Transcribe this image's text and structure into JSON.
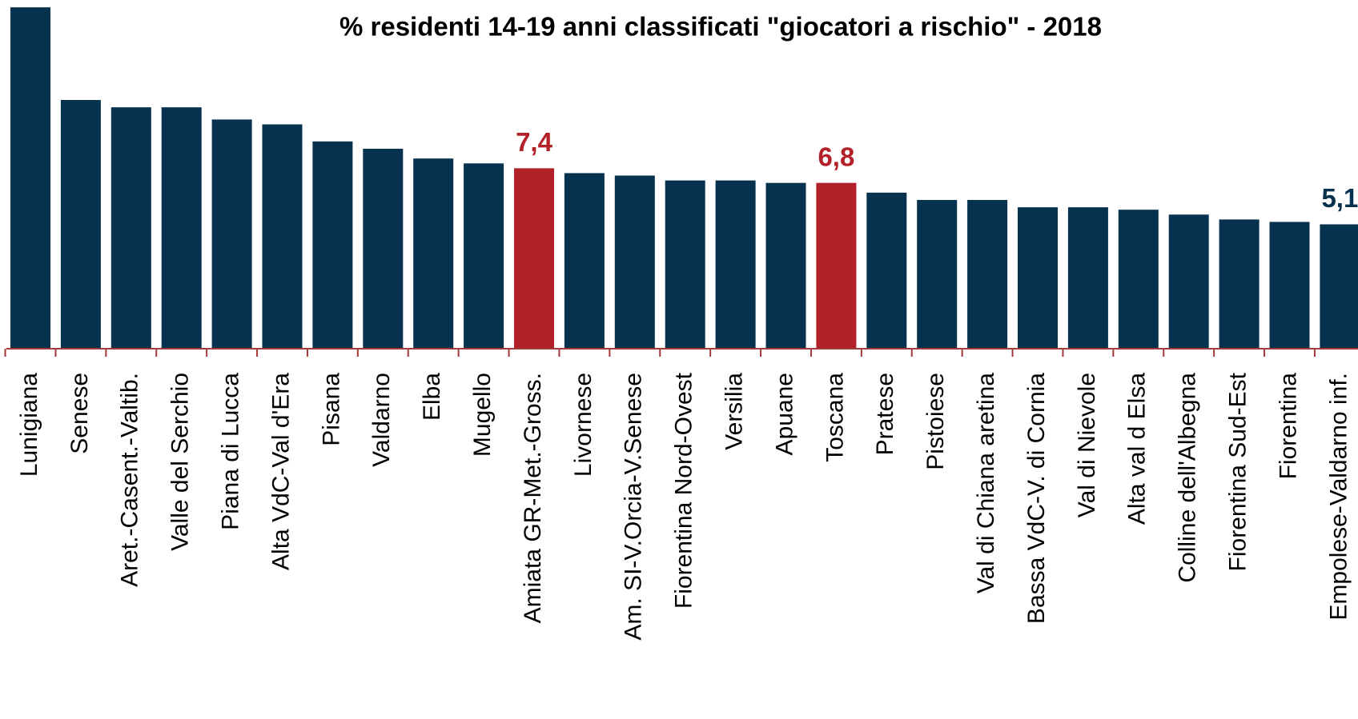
{
  "chart_data": {
    "type": "bar",
    "title": "% residenti 14-19 anni classificati \"giocatori a rischio\" - 2018",
    "categories": [
      "Lunigiana",
      "Senese",
      "Aret.-Casent.-Valtib.",
      "Valle del Serchio",
      "Piana di Lucca",
      "Alta VdC-Val d'Era",
      "Pisana",
      "Valdarno",
      "Elba",
      "Mugello",
      "Amiata GR-Met.-Gross.",
      "Livornese",
      "Am. SI-V.Orcia-V.Senese",
      "Fiorentina Nord-Ovest",
      "Versilia",
      "Apuane",
      "Toscana",
      "Pratese",
      "Pistoiese",
      "Val di Chiana aretina",
      "Bassa VdC-V. di Cornia",
      "Val di Nievole",
      "Alta val d Elsa",
      "Colline dell'Albegna",
      "Fiorentina Sud-Est",
      "Fiorentina",
      "Empolese-Valdarno inf."
    ],
    "values": [
      14.0,
      10.2,
      9.9,
      9.9,
      9.4,
      9.2,
      8.5,
      8.2,
      7.8,
      7.6,
      7.4,
      7.2,
      7.1,
      6.9,
      6.9,
      6.8,
      6.8,
      6.4,
      6.1,
      6.1,
      5.8,
      5.8,
      5.7,
      5.5,
      5.3,
      5.2,
      5.1
    ],
    "value_labels": [
      null,
      null,
      null,
      null,
      null,
      null,
      null,
      null,
      null,
      null,
      "7,4",
      null,
      null,
      null,
      null,
      null,
      "6,8",
      null,
      null,
      null,
      null,
      null,
      null,
      null,
      null,
      null,
      "5,1"
    ],
    "colors": [
      "#06324f",
      "#06324f",
      "#06324f",
      "#06324f",
      "#06324f",
      "#06324f",
      "#06324f",
      "#06324f",
      "#06324f",
      "#06324f",
      "#b22028",
      "#06324f",
      "#06324f",
      "#06324f",
      "#06324f",
      "#06324f",
      "#b22028",
      "#06324f",
      "#06324f",
      "#06324f",
      "#06324f",
      "#06324f",
      "#06324f",
      "#06324f",
      "#06324f",
      "#06324f",
      "#06324f"
    ],
    "ylim": [
      0,
      14.3
    ]
  }
}
